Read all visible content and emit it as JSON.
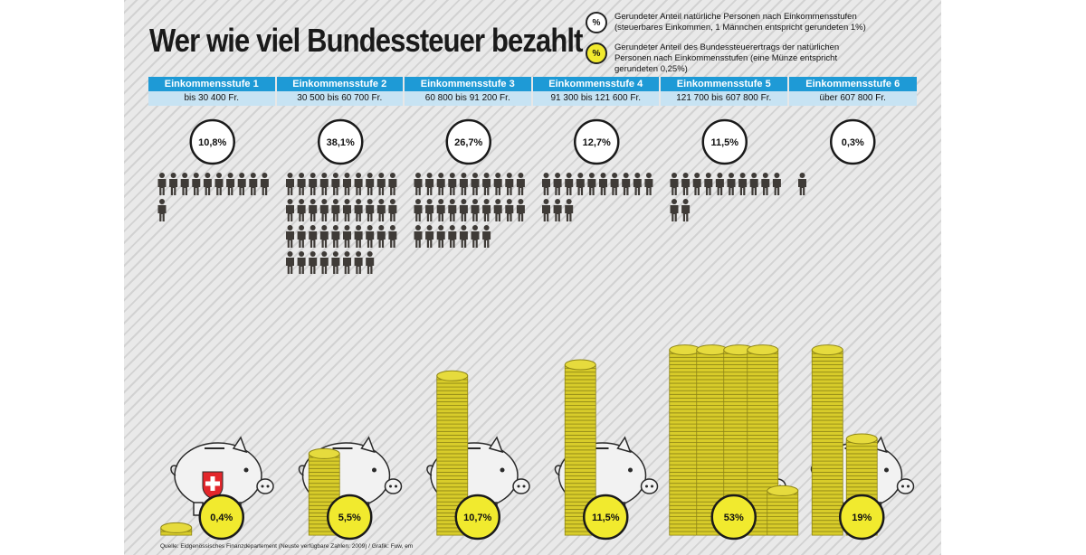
{
  "title": "Wer wie viel Bundessteuer bezahlt",
  "legend": {
    "persons": {
      "badge": "%",
      "text": "Gerundeter Anteil natürliche Personen nach Einkommensstufen (steuerbares Einkommen, 1 Männchen entspricht gerundeten 1%)"
    },
    "coins": {
      "badge": "%",
      "text": "Gerundeter Anteil des Bundessteuerertrags der natürlichen Personen nach Einkommensstufen (eine Münze entspricht gerundeten 0,25%)"
    }
  },
  "source": "Quelle: Eidgenössisches Finanzdepartement (Neuste verfügbare Zahlen: 2009) / Grafik: Fuw, em",
  "chart_data": {
    "type": "pictograph",
    "categories": [
      {
        "name": "Einkommensstufe 1",
        "range": "bis 30 400 Fr.",
        "persons_label": "10,8%",
        "persons_share": 10.8,
        "tax_label": "0,4%",
        "tax_share": 0.4
      },
      {
        "name": "Einkommensstufe 2",
        "range": "30 500 bis 60 700 Fr.",
        "persons_label": "38,1%",
        "persons_share": 38.1,
        "tax_label": "5,5%",
        "tax_share": 5.5
      },
      {
        "name": "Einkommensstufe 3",
        "range": "60 800 bis 91 200 Fr.",
        "persons_label": "26,7%",
        "persons_share": 26.7,
        "tax_label": "10,7%",
        "tax_share": 10.7
      },
      {
        "name": "Einkommensstufe 4",
        "range": "91 300 bis 121 600 Fr.",
        "persons_label": "12,7%",
        "persons_share": 12.7,
        "tax_label": "11,5%",
        "tax_share": 11.5
      },
      {
        "name": "Einkommensstufe 5",
        "range": "121 700 bis 607 800 Fr.",
        "persons_label": "11,5%",
        "persons_share": 11.5,
        "tax_label": "53%",
        "tax_share": 53
      },
      {
        "name": "Einkommensstufe 6",
        "range": "über 607 800 Fr.",
        "persons_label": "0,3%",
        "persons_share": 0.3,
        "tax_label": "19%",
        "tax_share": 19
      }
    ],
    "person_unit_percent": 1,
    "coin_unit_percent": 0.25,
    "colors": {
      "header": "#1e9ad6",
      "header_sub": "#c7e3f3",
      "person": "#3f3b37",
      "coin": "#d8cc2a",
      "coin_dark": "#8f8617",
      "badge_yellow": "#f1ea2e",
      "piggy": "#f2f2f2"
    }
  }
}
